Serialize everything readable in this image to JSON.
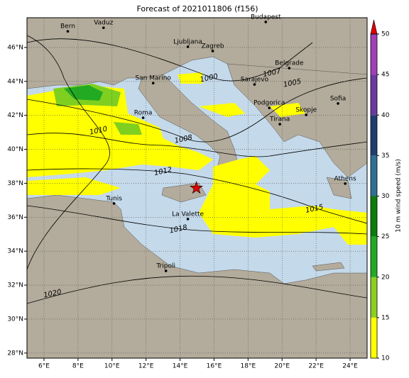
{
  "chart_data": {
    "type": "map",
    "title": "Forecast of 2021011806 (f156)",
    "xlim": [
      5,
      25
    ],
    "ylim": [
      27.7,
      47.75
    ],
    "xticks": [
      {
        "value": 6,
        "label": "6°E"
      },
      {
        "value": 8,
        "label": "8°E"
      },
      {
        "value": 10,
        "label": "10°E"
      },
      {
        "value": 12,
        "label": "12°E"
      },
      {
        "value": 14,
        "label": "14°E"
      },
      {
        "value": 16,
        "label": "16°E"
      },
      {
        "value": 18,
        "label": "18°E"
      },
      {
        "value": 20,
        "label": "20°E"
      },
      {
        "value": 22,
        "label": "22°E"
      },
      {
        "value": 24,
        "label": "24°E"
      }
    ],
    "yticks": [
      {
        "value": 28,
        "label": "28°N"
      },
      {
        "value": 30,
        "label": "30°N"
      },
      {
        "value": 32,
        "label": "32°N"
      },
      {
        "value": 34,
        "label": "34°N"
      },
      {
        "value": 36,
        "label": "36°N"
      },
      {
        "value": 38,
        "label": "38°N"
      },
      {
        "value": 40,
        "label": "40°N"
      },
      {
        "value": 42,
        "label": "42°N"
      },
      {
        "value": 44,
        "label": "44°N"
      },
      {
        "value": 46,
        "label": "46°N"
      }
    ],
    "grid": true,
    "cities": [
      {
        "name": "Bern",
        "lon": 7.4,
        "lat": 46.95
      },
      {
        "name": "Vaduz",
        "lon": 9.5,
        "lat": 47.16
      },
      {
        "name": "Budapest",
        "lon": 19.04,
        "lat": 47.5
      },
      {
        "name": "Ljubljana",
        "lon": 14.46,
        "lat": 46.04
      },
      {
        "name": "Zagreb",
        "lon": 15.92,
        "lat": 45.79
      },
      {
        "name": "San Marino",
        "lon": 12.42,
        "lat": 43.9
      },
      {
        "name": "Belgrade",
        "lon": 20.42,
        "lat": 44.78
      },
      {
        "name": "Sarajevo",
        "lon": 18.38,
        "lat": 43.82
      },
      {
        "name": "Sofia",
        "lon": 23.29,
        "lat": 42.7
      },
      {
        "name": "Roma",
        "lon": 11.83,
        "lat": 41.86
      },
      {
        "name": "Podgorica",
        "lon": 19.25,
        "lat": 42.44
      },
      {
        "name": "Skopje",
        "lon": 21.42,
        "lat": 42.03
      },
      {
        "name": "Tirana",
        "lon": 19.87,
        "lat": 41.48
      },
      {
        "name": "Athens",
        "lon": 23.71,
        "lat": 37.98
      },
      {
        "name": "Tunis",
        "lon": 10.12,
        "lat": 36.81
      },
      {
        "name": "La Valette",
        "lon": 14.46,
        "lat": 35.89
      },
      {
        "name": "Tripoli",
        "lon": 13.17,
        "lat": 32.84
      }
    ],
    "isobar_labels": [
      {
        "value": 1000,
        "lon": 15.7,
        "lat": 44.2
      },
      {
        "value": 1007,
        "lon": 19.4,
        "lat": 44.5
      },
      {
        "value": 1005,
        "lon": 20.6,
        "lat": 43.9
      },
      {
        "value": 1010,
        "lon": 9.2,
        "lat": 41.1
      },
      {
        "value": 1008,
        "lon": 14.2,
        "lat": 40.6
      },
      {
        "value": 1012,
        "lon": 13.0,
        "lat": 38.7
      },
      {
        "value": 1015,
        "lon": 21.9,
        "lat": 36.5
      },
      {
        "value": 1018,
        "lon": 13.9,
        "lat": 35.3
      },
      {
        "value": 1020,
        "lon": 6.5,
        "lat": 31.5
      }
    ],
    "marker": {
      "lon": 14.96,
      "lat": 37.72,
      "color": "#e00000"
    },
    "colorbar": {
      "label": "10 m wind speed (m/s)",
      "lim": [
        10,
        50
      ],
      "ticks": [
        10,
        15,
        20,
        25,
        30,
        35,
        40,
        45,
        50
      ],
      "colors": [
        "#ffff00",
        "#8ccf1e",
        "#22aa22",
        "#0a7d0a",
        "#2f6f95",
        "#1f3f6e",
        "#6a3aa0",
        "#a040b8"
      ],
      "extend_color": "#dd0000"
    }
  }
}
